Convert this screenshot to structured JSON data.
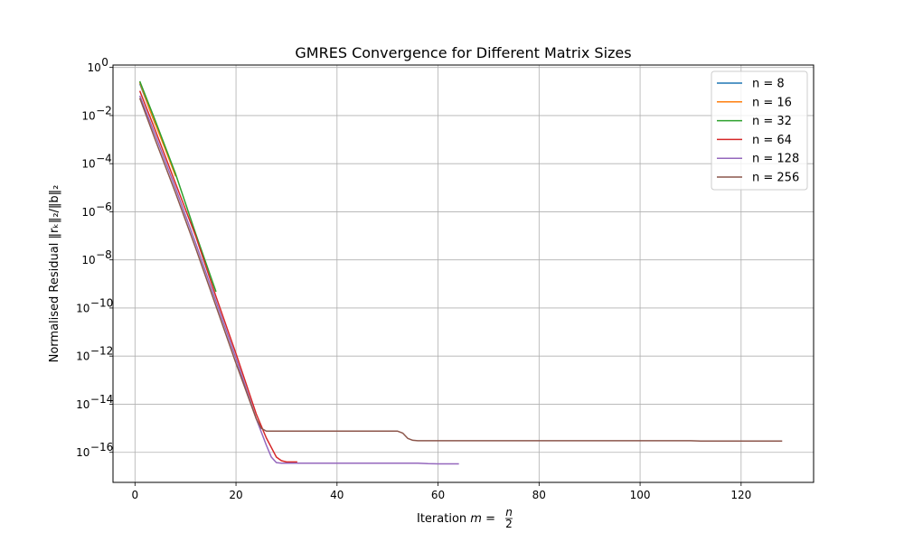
{
  "chart_data": {
    "type": "line",
    "title": "GMRES Convergence for Different Matrix Sizes",
    "xlabel": {
      "prefix": "Iteration ",
      "var": "m",
      "eq": " = ",
      "numerator": "n",
      "denominator": "2"
    },
    "ylabel": "Normalised Residual ‖rₖ‖₂/‖b‖₂",
    "x_scale": "linear",
    "y_scale": "log",
    "xlim": [
      -4.35,
      134.35
    ],
    "ylim_exp": [
      -17.25,
      0.1
    ],
    "x_ticks": [
      0,
      20,
      40,
      60,
      80,
      100,
      120
    ],
    "y_tick_exps": [
      0,
      -2,
      -4,
      -6,
      -8,
      -10,
      -12,
      -14,
      -16
    ],
    "grid": true,
    "legend_position": "top-right",
    "series": [
      {
        "name": "n = 8",
        "color": "#1f77b4",
        "points_log10": [
          [
            1,
            -0.7
          ],
          [
            2,
            -1.25
          ],
          [
            4,
            -2.35
          ]
        ]
      },
      {
        "name": "n = 16",
        "color": "#ff7f0e",
        "points_log10": [
          [
            1,
            -0.65
          ],
          [
            3,
            -1.8
          ],
          [
            6,
            -3.4
          ],
          [
            8,
            -4.5
          ]
        ]
      },
      {
        "name": "n = 32",
        "color": "#2ca02c",
        "points_log10": [
          [
            1,
            -0.6
          ],
          [
            4,
            -2.2
          ],
          [
            8,
            -4.4
          ],
          [
            12,
            -6.9
          ],
          [
            16,
            -9.3
          ]
        ]
      },
      {
        "name": "n = 64",
        "color": "#d62728",
        "points_log10": [
          [
            1,
            -1.0
          ],
          [
            4,
            -2.6
          ],
          [
            8,
            -4.8
          ],
          [
            12,
            -7.0
          ],
          [
            16,
            -9.5
          ],
          [
            20,
            -11.9
          ],
          [
            24,
            -14.4
          ],
          [
            26,
            -15.4
          ],
          [
            28,
            -16.2
          ],
          [
            29,
            -16.35
          ],
          [
            30,
            -16.4
          ],
          [
            32,
            -16.4
          ]
        ]
      },
      {
        "name": "n = 128",
        "color": "#9467bd",
        "points_log10": [
          [
            1,
            -1.2
          ],
          [
            4,
            -2.8
          ],
          [
            8,
            -5.0
          ],
          [
            12,
            -7.3
          ],
          [
            16,
            -9.7
          ],
          [
            20,
            -12.1
          ],
          [
            24,
            -14.6
          ],
          [
            26,
            -15.7
          ],
          [
            27,
            -16.2
          ],
          [
            28,
            -16.43
          ],
          [
            29,
            -16.45
          ],
          [
            40,
            -16.45
          ],
          [
            50,
            -16.45
          ],
          [
            56,
            -16.45
          ],
          [
            58,
            -16.47
          ],
          [
            60,
            -16.48
          ],
          [
            64,
            -16.48
          ]
        ]
      },
      {
        "name": "n = 256",
        "color": "#8c564b",
        "points_log10": [
          [
            1,
            -1.3
          ],
          [
            4,
            -3.0
          ],
          [
            8,
            -5.2
          ],
          [
            12,
            -7.5
          ],
          [
            16,
            -9.9
          ],
          [
            20,
            -12.3
          ],
          [
            24,
            -14.6
          ],
          [
            25,
            -15.0
          ],
          [
            26,
            -15.12
          ],
          [
            30,
            -15.12
          ],
          [
            40,
            -15.12
          ],
          [
            50,
            -15.12
          ],
          [
            52,
            -15.12
          ],
          [
            53,
            -15.2
          ],
          [
            54,
            -15.42
          ],
          [
            55,
            -15.5
          ],
          [
            56,
            -15.52
          ],
          [
            70,
            -15.52
          ],
          [
            90,
            -15.52
          ],
          [
            110,
            -15.52
          ],
          [
            112,
            -15.53
          ],
          [
            128,
            -15.53
          ]
        ]
      }
    ]
  }
}
